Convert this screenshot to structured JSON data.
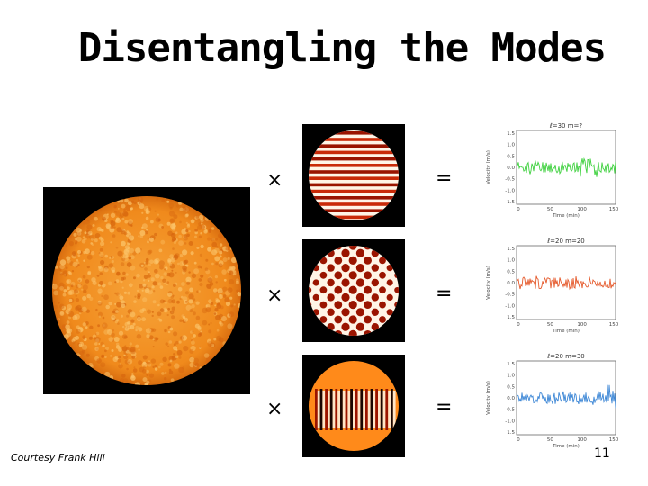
{
  "slide": {
    "title": "Disentangling the Modes",
    "courtesy": "Courtesy Frank Hill",
    "page_number": "11",
    "operators": {
      "times": "×",
      "equals": "="
    }
  },
  "plots": [
    {
      "label": "ℓ=30  m=?",
      "color": "#3fd13f",
      "ylabel": "Velocity (m/s)",
      "xlabel": "Time (min)",
      "yticks": [
        "1.5",
        "1.0",
        "0.5",
        "0.0",
        "-0.5",
        "-1.0",
        "1.5"
      ],
      "xticks": [
        "0",
        "50",
        "100",
        "150"
      ]
    },
    {
      "label": "ℓ=20  m=20",
      "color": "#e5592b",
      "ylabel": "Velocity (m/s)",
      "xlabel": "Time (min)",
      "yticks": [
        "1.5",
        "1.0",
        "0.5",
        "0.0",
        "-0.5",
        "-1.0",
        "1.5"
      ],
      "xticks": [
        "0",
        "50",
        "100",
        "150"
      ]
    },
    {
      "label": "ℓ=20  m=30",
      "color": "#3d87d6",
      "ylabel": "Velocity (m/s)",
      "xlabel": "Time (min)",
      "yticks": [
        "1.5",
        "1.0",
        "0.5",
        "0.0",
        "-0.5",
        "-1.0",
        "1.5"
      ],
      "xticks": [
        "0",
        "50",
        "100",
        "150"
      ]
    }
  ],
  "colors": {
    "sun_base": "#f28a1e",
    "mode_dark": "#9a1400",
    "mode_light": "#fff4e6",
    "mode_mid": "#ff8a1a"
  }
}
